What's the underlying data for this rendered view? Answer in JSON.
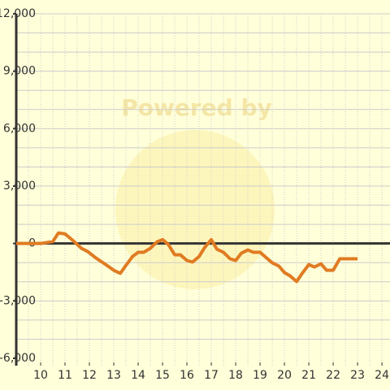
{
  "chart_data": {
    "type": "line",
    "watermark": "Powered by",
    "x": [
      9,
      10,
      10.5,
      10.73,
      11,
      11.33,
      11.67,
      11.93,
      12.27,
      12.67,
      13,
      13.27,
      13.5,
      13.77,
      14,
      14.23,
      14.5,
      14.77,
      15,
      15.23,
      15.5,
      15.73,
      16,
      16.23,
      16.5,
      16.73,
      17,
      17.23,
      17.5,
      17.77,
      18,
      18.23,
      18.5,
      18.73,
      19,
      19.27,
      19.5,
      19.77,
      20,
      20.23,
      20.5,
      20.73,
      21,
      21.23,
      21.5,
      21.73,
      22,
      22.27,
      22.5,
      23
    ],
    "series": [
      {
        "color": "#e07b22",
        "values": [
          0,
          0,
          100,
          550,
          500,
          150,
          -250,
          -420,
          -760,
          -1100,
          -1400,
          -1560,
          -1140,
          -680,
          -460,
          -460,
          -250,
          80,
          200,
          -40,
          -590,
          -590,
          -890,
          -970,
          -680,
          -210,
          200,
          -300,
          -460,
          -800,
          -890,
          -510,
          -340,
          -460,
          -460,
          -760,
          -1010,
          -1180,
          -1520,
          -1690,
          -1990,
          -1560,
          -1100,
          -1230,
          -1060,
          -1400,
          -1400,
          -800,
          -800,
          -800
        ]
      }
    ],
    "xlim": [
      9,
      24.33
    ],
    "ylim": [
      -6000,
      12000
    ],
    "xticks": [
      10,
      11,
      12,
      13,
      14,
      15,
      16,
      17,
      18,
      19,
      20,
      21,
      22,
      23,
      24
    ],
    "xgrid": [
      9.5,
      10,
      10.5,
      11,
      11.5,
      12,
      12.5,
      13,
      13.5,
      14,
      14.5,
      15,
      15.5,
      16,
      16.5,
      17,
      17.5,
      18,
      18.5,
      19,
      19.5,
      20,
      20.5,
      21,
      21.5,
      22,
      22.5,
      23,
      23.5,
      24
    ],
    "yticks": [
      {
        "value": -6000,
        "label": "-6,000"
      },
      {
        "value": -3000,
        "label": "-3,000"
      },
      0,
      {
        "value": 3000,
        "label": "3,000"
      },
      {
        "value": 6000,
        "label": "6,000"
      },
      {
        "value": 9000,
        "label": "9,000"
      },
      {
        "value": 12000,
        "label": "12,000"
      }
    ],
    "ygrid": [
      -5000,
      -4000,
      -3000,
      -2000,
      -1000,
      1000,
      2000,
      3000,
      4000,
      5000,
      6000,
      7000,
      8000,
      9000,
      10000,
      11000,
      12000
    ]
  }
}
